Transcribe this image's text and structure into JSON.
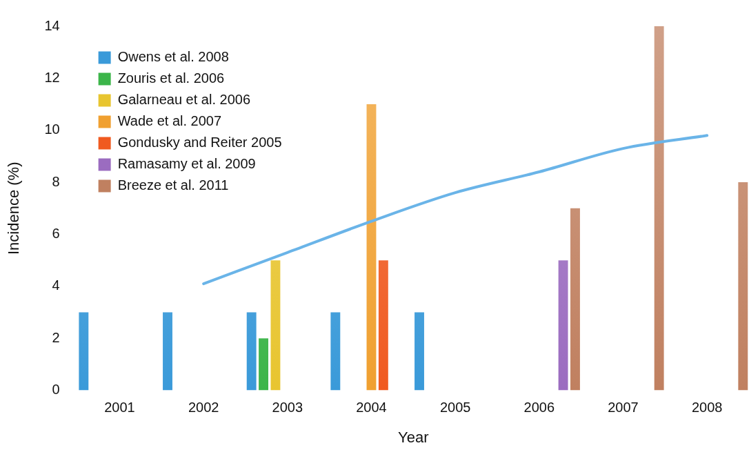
{
  "chart_data": {
    "type": "bar",
    "xlabel": "Year",
    "ylabel": "Incidence (%)",
    "categories": [
      "2001",
      "2002",
      "2003",
      "2004",
      "2005",
      "2006",
      "2007",
      "2008"
    ],
    "series": [
      {
        "name": "Owens et al. 2008",
        "color": "#3a9ad9",
        "values": [
          3,
          3,
          3,
          3,
          3,
          null,
          null,
          null
        ]
      },
      {
        "name": "Zouris et al. 2006",
        "color": "#3cb54a",
        "values": [
          null,
          null,
          2,
          null,
          null,
          null,
          null,
          null
        ]
      },
      {
        "name": "Galarneau et al. 2006",
        "color": "#e8c530",
        "values": [
          null,
          null,
          5,
          null,
          null,
          null,
          null,
          null
        ]
      },
      {
        "name": "Wade et al. 2007",
        "color": "#f0a030",
        "values": [
          null,
          null,
          null,
          11,
          null,
          null,
          null,
          null
        ]
      },
      {
        "name": "Gondusky and Reiter 2005",
        "color": "#f05a20",
        "values": [
          null,
          null,
          null,
          5,
          null,
          null,
          null,
          null
        ]
      },
      {
        "name": "Ramasamy et al. 2009",
        "color": "#9b6cc0",
        "values": [
          null,
          null,
          null,
          null,
          null,
          5,
          null,
          null
        ]
      },
      {
        "name": "Breeze et al. 2011",
        "color": "#c08060",
        "values": [
          null,
          null,
          null,
          null,
          null,
          7,
          14,
          8
        ]
      },
      {
        "type": "line",
        "color": "#6ab4e8",
        "values": [
          null,
          4.1,
          5.3,
          6.5,
          7.6,
          8.4,
          9.3,
          9.8
        ]
      }
    ],
    "ylim": [
      0,
      14
    ],
    "yticks": [
      0,
      2,
      4,
      6,
      8,
      10,
      12,
      14
    ],
    "grid": false,
    "legend": "top left",
    "marker": "none",
    "line_style": "solid"
  }
}
